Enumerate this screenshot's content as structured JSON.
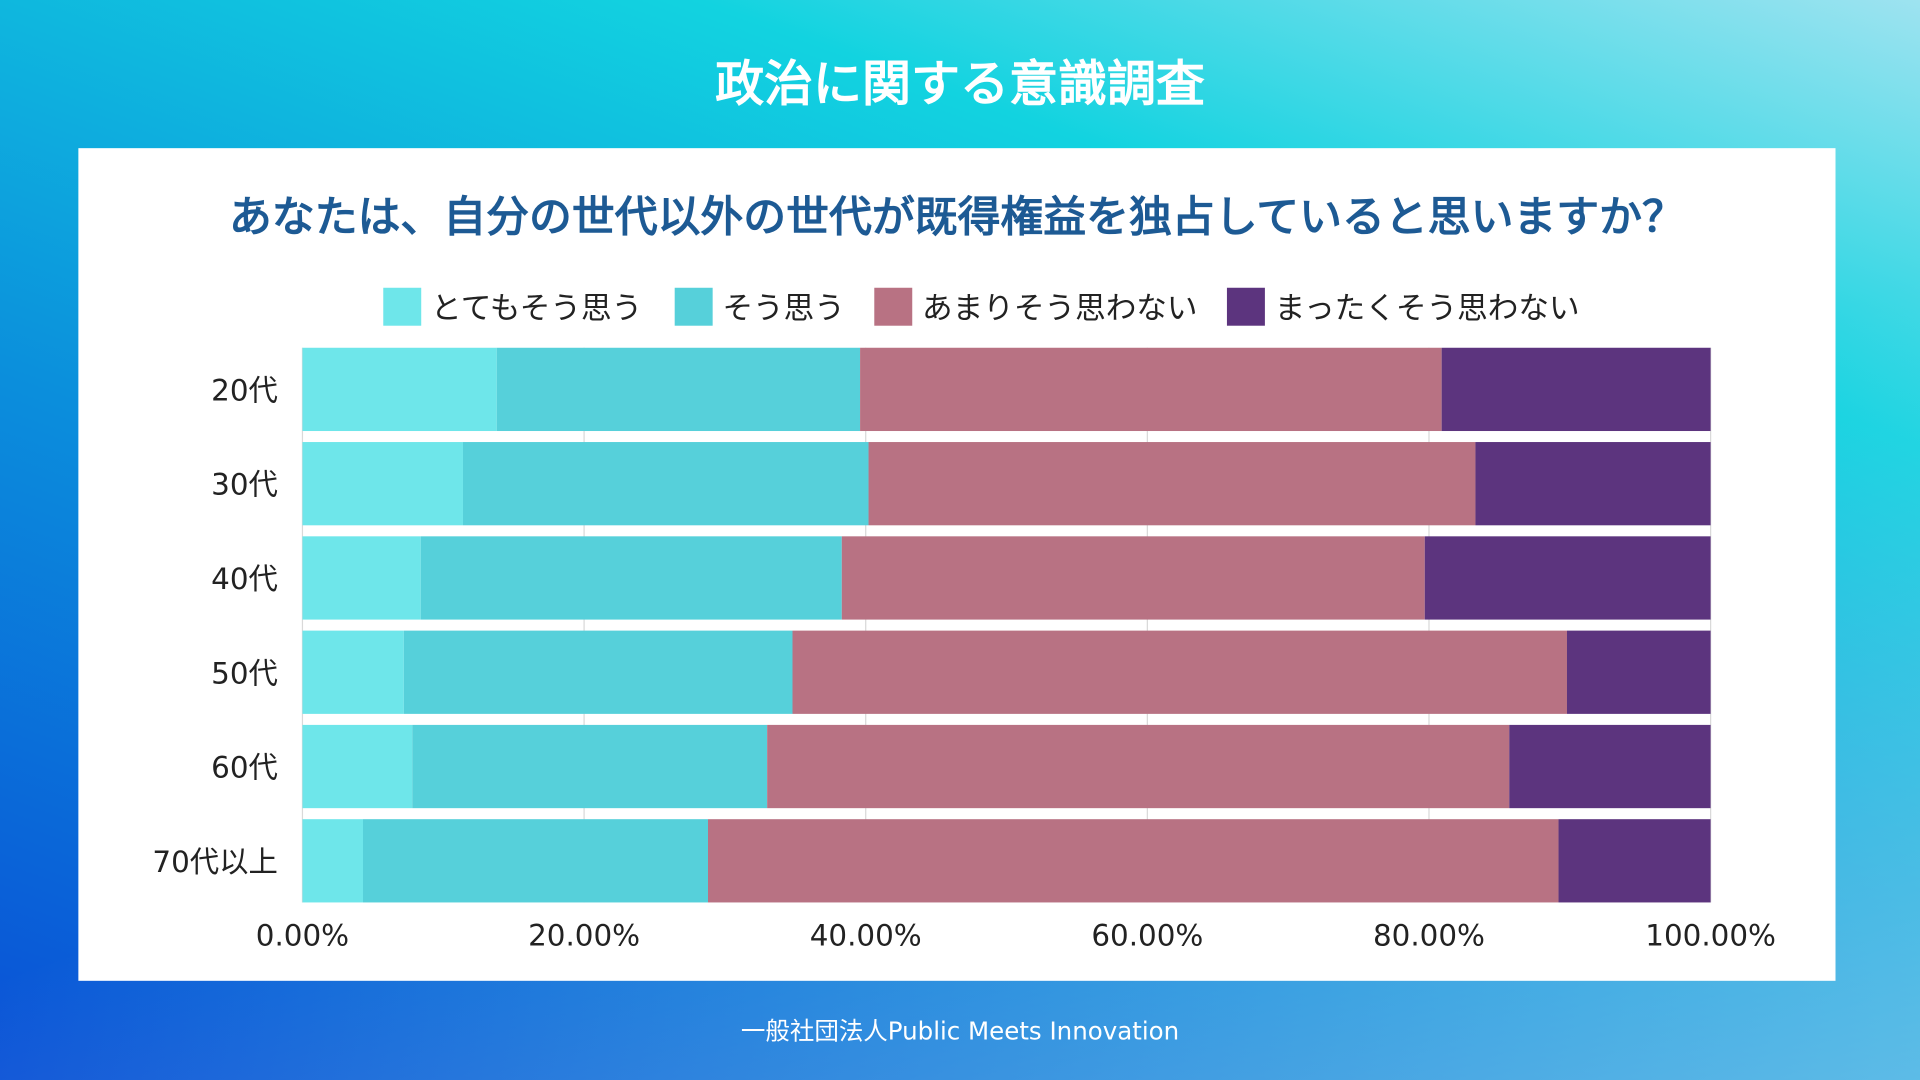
{
  "header": {
    "title": "政治に関する意識調査"
  },
  "footer": {
    "text": "一般社団法人Public Meets Innovation"
  },
  "chart_data": {
    "type": "bar",
    "orientation": "horizontal-stacked-100",
    "title": "あなたは、自分の世代以外の世代が既得権益を独占していると思いますか？",
    "categories": [
      "20代",
      "30代",
      "40代",
      "50代",
      "60代",
      "70代以上"
    ],
    "series": [
      {
        "name": "とてもそう思う",
        "color": "#6ee6ea",
        "values": [
          13.8,
          11.4,
          8.4,
          7.2,
          7.8,
          4.3
        ]
      },
      {
        "name": "そう思う",
        "color": "#56d0da",
        "values": [
          25.8,
          28.8,
          29.9,
          27.6,
          25.2,
          24.5
        ]
      },
      {
        "name": "あまりそう思わない",
        "color": "#b87283",
        "values": [
          41.3,
          43.1,
          41.4,
          55.0,
          52.7,
          60.4
        ]
      },
      {
        "name": "まったくそう思わない",
        "color": "#5c347e",
        "values": [
          19.1,
          16.7,
          20.3,
          10.2,
          14.3,
          10.8
        ]
      }
    ],
    "xlim": [
      0,
      100
    ],
    "xticks": [
      "0.00%",
      "20.00%",
      "40.00%",
      "60.00%",
      "80.00%",
      "100.00%"
    ],
    "grid": true,
    "legend": "top"
  }
}
